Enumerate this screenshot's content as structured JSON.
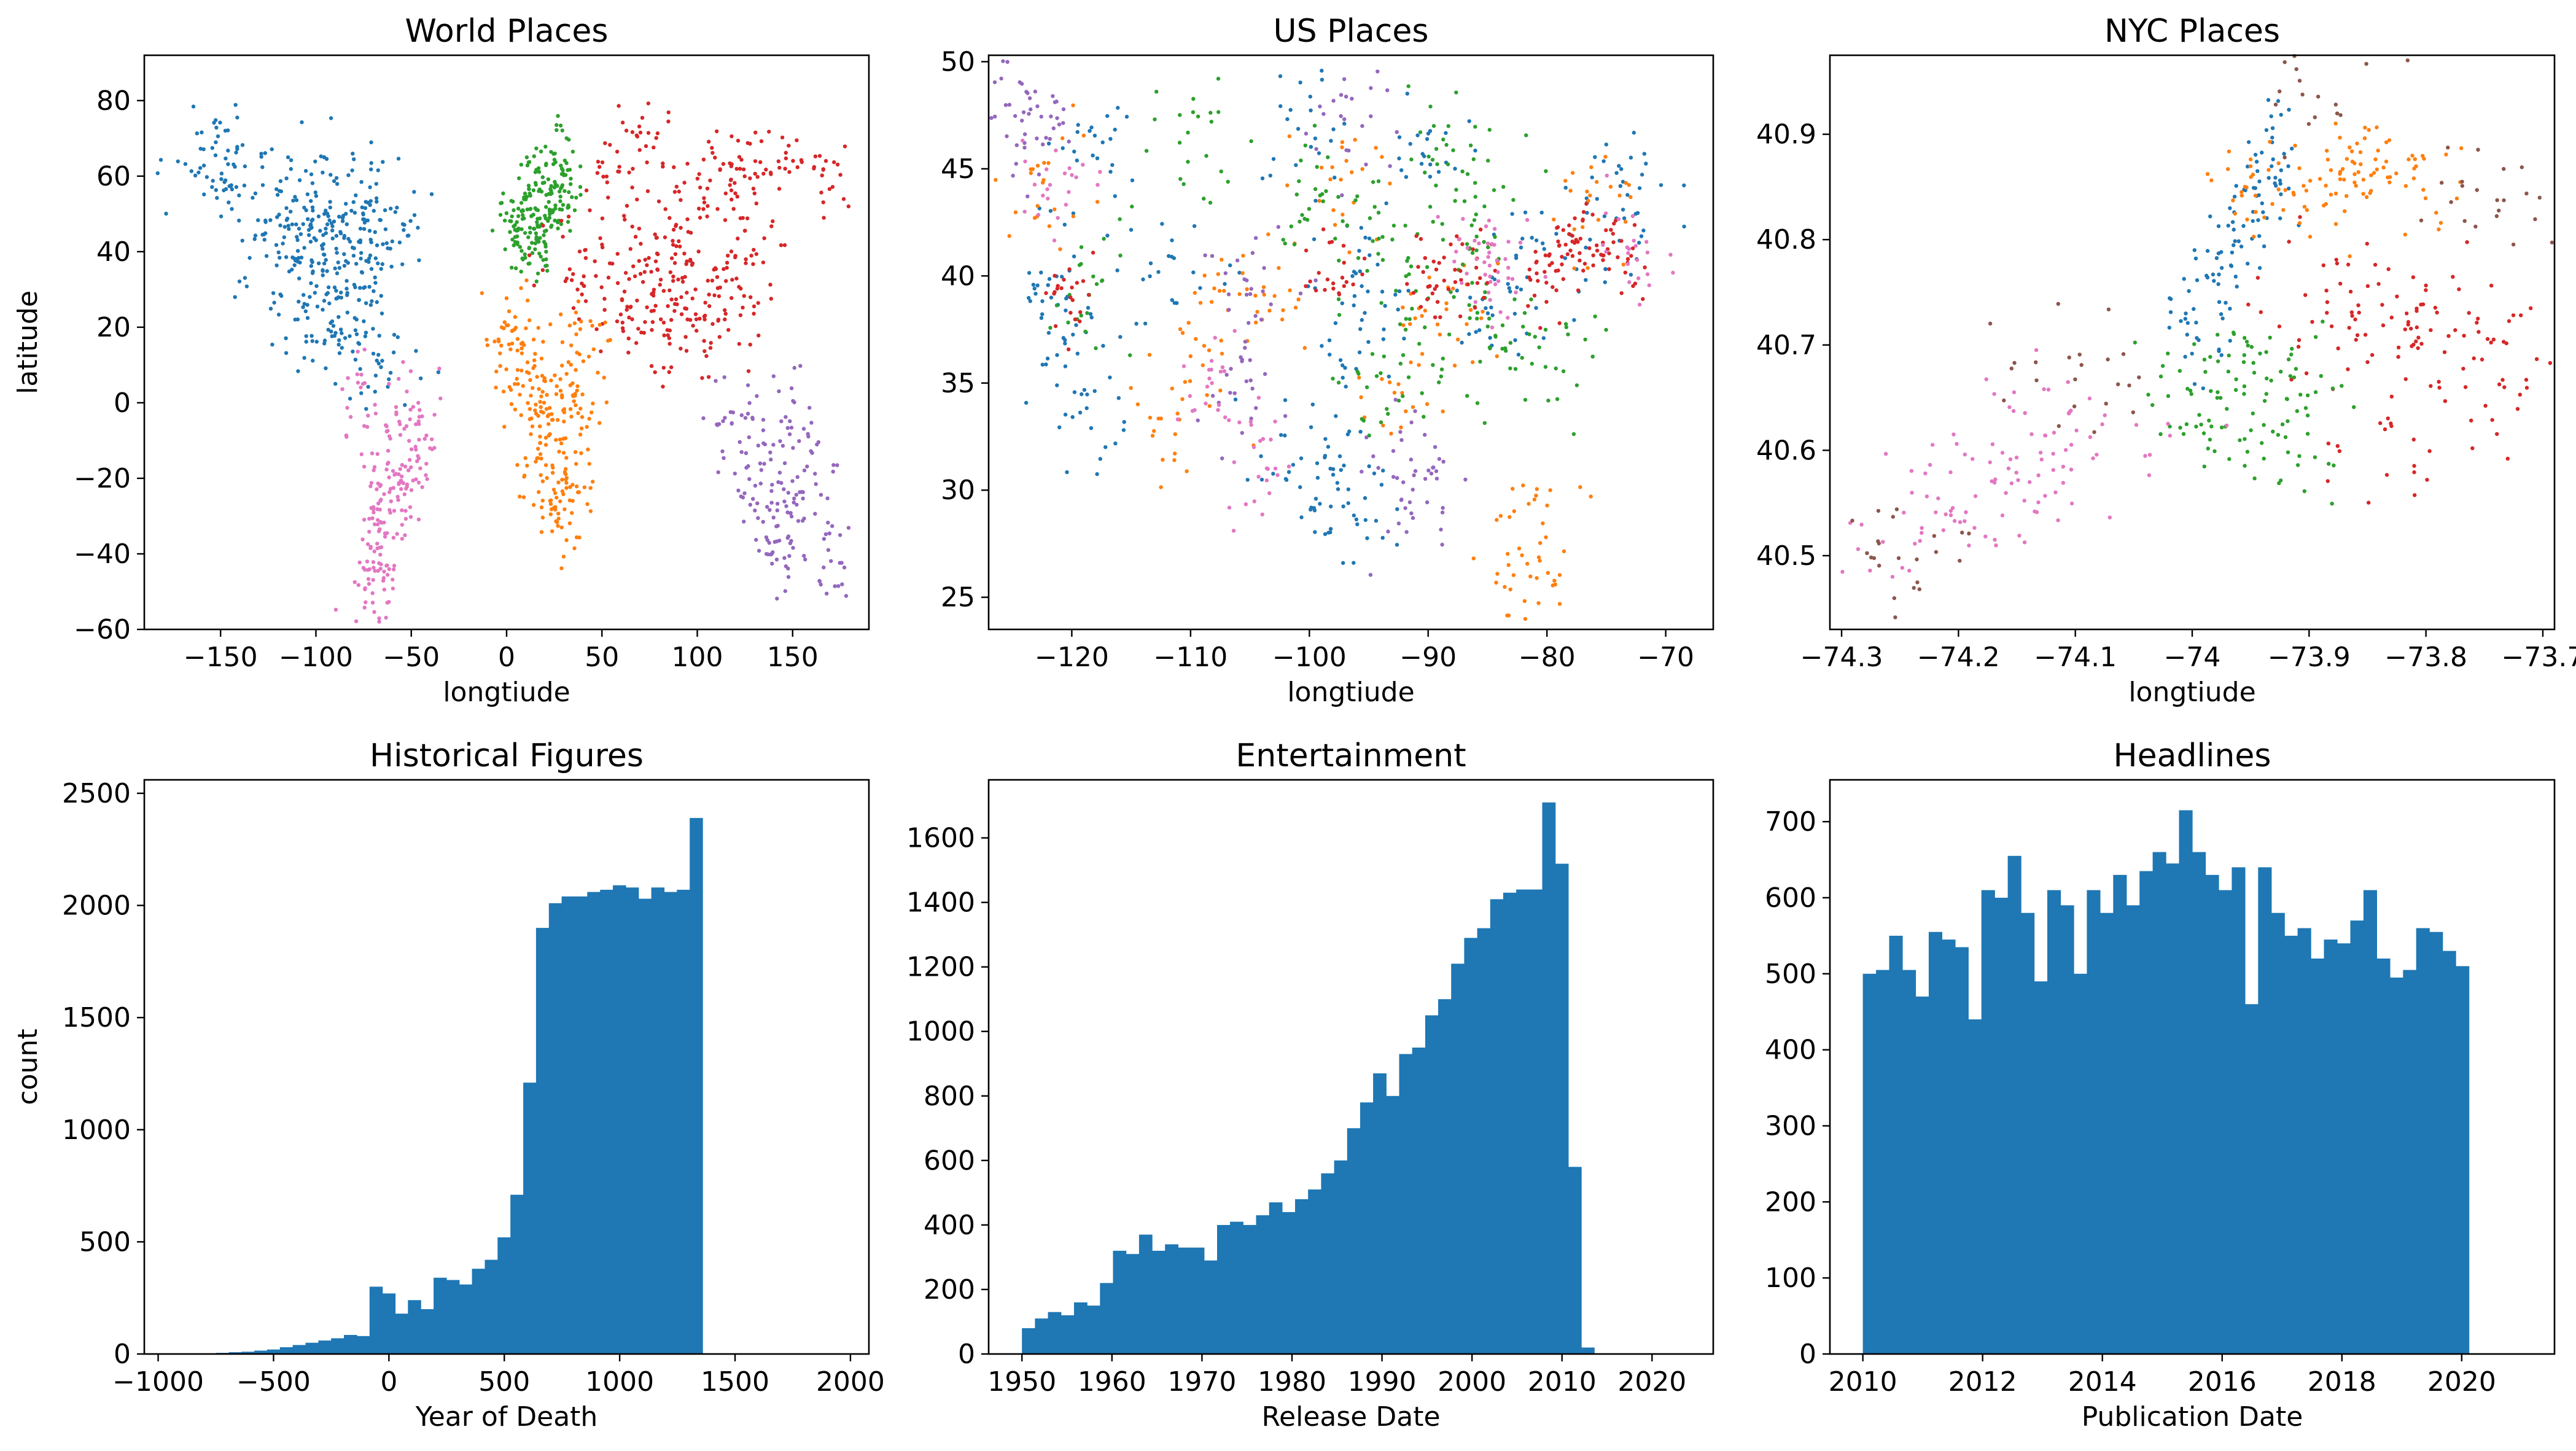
{
  "chart_data": [
    {
      "type": "scatter",
      "title": "World Places",
      "xlabel": "longtiude",
      "ylabel": "latitude",
      "xlim": [
        -190,
        190
      ],
      "ylim": [
        -60,
        92
      ],
      "xticks": [
        -150,
        -100,
        -50,
        0,
        50,
        100,
        150
      ],
      "yticks": [
        -60,
        -40,
        -20,
        0,
        20,
        40,
        60,
        80
      ],
      "grid": false,
      "clusters": [
        {
          "color": "#1f77b4",
          "spread": [
            12,
            7
          ],
          "points": [
            [
              -100,
              40
            ],
            [
              -85,
              38
            ],
            [
              -120,
              45
            ],
            [
              -90,
              50
            ],
            [
              -75,
              42
            ],
            [
              -105,
              55
            ],
            [
              -140,
              62
            ],
            [
              -100,
              25
            ],
            [
              -95,
              18
            ],
            [
              -80,
              30
            ],
            [
              -115,
              35
            ],
            [
              -70,
              48
            ],
            [
              -150,
              60
            ],
            [
              -88,
              45
            ],
            [
              -110,
              48
            ],
            [
              -60,
              50
            ],
            [
              -95,
              60
            ],
            [
              -65,
              10
            ],
            [
              -80,
              15
            ],
            [
              -160,
              65
            ]
          ]
        },
        {
          "color": "#e377c2",
          "spread": [
            6,
            8
          ],
          "points": [
            [
              -60,
              -10
            ],
            [
              -55,
              -20
            ],
            [
              -65,
              -30
            ],
            [
              -70,
              -40
            ],
            [
              -50,
              -5
            ],
            [
              -45,
              -15
            ],
            [
              -70,
              -50
            ],
            [
              -75,
              0
            ],
            [
              -60,
              -25
            ],
            [
              -68,
              -45
            ]
          ]
        },
        {
          "color": "#2ca02c",
          "spread": [
            5,
            4
          ],
          "points": [
            [
              10,
              50
            ],
            [
              20,
              52
            ],
            [
              15,
              60
            ],
            [
              25,
              55
            ],
            [
              5,
              45
            ],
            [
              30,
              58
            ],
            [
              20,
              45
            ],
            [
              2,
              48
            ],
            [
              30,
              65
            ],
            [
              15,
              40
            ]
          ]
        },
        {
          "color": "#d62728",
          "spread": [
            12,
            7
          ],
          "points": [
            [
              70,
              30
            ],
            [
              80,
              25
            ],
            [
              100,
              30
            ],
            [
              110,
              35
            ],
            [
              90,
              50
            ],
            [
              60,
              55
            ],
            [
              130,
              45
            ],
            [
              40,
              40
            ],
            [
              115,
              25
            ],
            [
              75,
              20
            ],
            [
              120,
              60
            ],
            [
              140,
              65
            ],
            [
              50,
              30
            ],
            [
              100,
              15
            ],
            [
              165,
              60
            ],
            [
              85,
              40
            ],
            [
              70,
              70
            ],
            [
              105,
              55
            ]
          ]
        },
        {
          "color": "#ff7f0e",
          "spread": [
            7,
            7
          ],
          "points": [
            [
              10,
              10
            ],
            [
              20,
              0
            ],
            [
              30,
              -10
            ],
            [
              25,
              -25
            ],
            [
              5,
              15
            ],
            [
              35,
              5
            ],
            [
              30,
              -30
            ],
            [
              15,
              -5
            ],
            [
              40,
              15
            ],
            [
              0,
              20
            ],
            [
              20,
              -15
            ],
            [
              35,
              -20
            ]
          ]
        },
        {
          "color": "#9467bd",
          "spread": [
            7,
            7
          ],
          "points": [
            [
              145,
              -30
            ],
            [
              145,
              -38
            ],
            [
              135,
              -25
            ],
            [
              150,
              -5
            ],
            [
              120,
              -5
            ],
            [
              170,
              -40
            ],
            [
              130,
              -15
            ],
            [
              160,
              -20
            ]
          ]
        }
      ]
    },
    {
      "type": "scatter",
      "title": "US Places",
      "xlabel": "longtiude",
      "ylabel": "",
      "xlim": [
        -127,
        -66
      ],
      "ylim": [
        23.5,
        50.3
      ],
      "xticks": [
        -120,
        -110,
        -100,
        -90,
        -80,
        -70
      ],
      "yticks": [
        25,
        30,
        35,
        40,
        45,
        50
      ],
      "grid": false,
      "clusters": [
        {
          "color": "#1f77b4",
          "spread": [
            2.2,
            1.6
          ],
          "points": [
            [
              -120,
              37
            ],
            [
              -118,
              34
            ],
            [
              -122,
              40
            ],
            [
              -98,
              31
            ],
            [
              -100,
              32
            ],
            [
              -96,
              29
            ],
            [
              -95,
              39
            ],
            [
              -85,
              38
            ],
            [
              -75,
              42
            ],
            [
              -72,
              44
            ],
            [
              -90,
              46
            ],
            [
              -95,
              37
            ],
            [
              -118,
              46
            ],
            [
              -112,
              40
            ],
            [
              -82,
              41
            ],
            [
              -100,
              47
            ]
          ]
        },
        {
          "color": "#ff7f0e",
          "spread": [
            2.0,
            1.5
          ],
          "points": [
            [
              -82,
              28
            ],
            [
              -81,
              26
            ],
            [
              -92,
              35
            ],
            [
              -112,
              34
            ],
            [
              -122,
              44
            ],
            [
              -108,
              38
            ],
            [
              -76,
              43
            ],
            [
              -97,
              44
            ],
            [
              -88,
              38
            ],
            [
              -104,
              39
            ]
          ]
        },
        {
          "color": "#2ca02c",
          "spread": [
            2.0,
            1.6
          ],
          "points": [
            [
              -89,
              45
            ],
            [
              -86,
              44
            ],
            [
              -95,
              42
            ],
            [
              -94,
              35
            ],
            [
              -80,
              36
            ],
            [
              -84,
              36
            ],
            [
              -100,
              44
            ],
            [
              -110,
              47
            ],
            [
              -118,
              40
            ],
            [
              -92,
              38
            ],
            [
              -86,
              40
            ]
          ]
        },
        {
          "color": "#d62728",
          "spread": [
            1.2,
            1.0
          ],
          "points": [
            [
              -90,
              40
            ],
            [
              -87,
              40
            ],
            [
              -78,
              41
            ],
            [
              -80,
              40
            ],
            [
              -98,
              40
            ],
            [
              -74,
              41
            ],
            [
              -76,
              42
            ],
            [
              -120,
              39
            ]
          ]
        },
        {
          "color": "#9467bd",
          "spread": [
            1.8,
            1.4
          ],
          "points": [
            [
              -105,
              40
            ],
            [
              -106,
              35
            ],
            [
              -90,
              30
            ],
            [
              -92,
              31
            ],
            [
              -124,
              48
            ],
            [
              -97,
              47
            ],
            [
              -122,
              47
            ]
          ]
        },
        {
          "color": "#e377c2",
          "spread": [
            1.6,
            1.2
          ],
          "points": [
            [
              -84,
              40
            ],
            [
              -86,
              41
            ],
            [
              -121,
              44
            ],
            [
              -108,
              35
            ],
            [
              -104,
              31
            ],
            [
              -73,
              41
            ]
          ]
        }
      ]
    },
    {
      "type": "scatter",
      "title": "NYC Places",
      "xlabel": "longtiude",
      "ylabel": "",
      "xlim": [
        -74.31,
        -73.69
      ],
      "ylim": [
        40.43,
        40.975
      ],
      "xticks": [
        -74.3,
        -74.2,
        -74.1,
        -74.0,
        -73.9,
        -73.8,
        -73.7
      ],
      "yticks": [
        40.5,
        40.6,
        40.7,
        40.8,
        40.9
      ],
      "grid": false,
      "clusters": [
        {
          "color": "#1f77b4",
          "spread": [
            0.012,
            0.03
          ],
          "points": [
            [
              -73.98,
              40.76
            ],
            [
              -73.96,
              40.8
            ],
            [
              -73.94,
              40.84
            ],
            [
              -74.0,
              40.72
            ],
            [
              -73.93,
              40.87
            ]
          ]
        },
        {
          "color": "#ff7f0e",
          "spread": [
            0.035,
            0.02
          ],
          "points": [
            [
              -73.88,
              40.86
            ],
            [
              -73.85,
              40.84
            ],
            [
              -73.89,
              40.88
            ],
            [
              -73.82,
              40.87
            ],
            [
              -73.92,
              40.84
            ]
          ]
        },
        {
          "color": "#d62728",
          "spread": [
            0.045,
            0.035
          ],
          "points": [
            [
              -73.85,
              40.72
            ],
            [
              -73.8,
              40.74
            ],
            [
              -73.76,
              40.7
            ],
            [
              -73.88,
              40.75
            ],
            [
              -73.82,
              40.68
            ],
            [
              -73.8,
              40.6
            ]
          ]
        },
        {
          "color": "#2ca02c",
          "spread": [
            0.04,
            0.028
          ],
          "points": [
            [
              -73.95,
              40.65
            ],
            [
              -73.98,
              40.63
            ],
            [
              -73.92,
              40.67
            ],
            [
              -73.99,
              40.68
            ],
            [
              -73.93,
              40.61
            ]
          ]
        },
        {
          "color": "#e377c2",
          "spread": [
            0.045,
            0.03
          ],
          "points": [
            [
              -74.15,
              40.58
            ],
            [
              -74.12,
              40.6
            ],
            [
              -74.2,
              40.55
            ],
            [
              -74.1,
              40.62
            ],
            [
              -74.23,
              40.52
            ]
          ]
        },
        {
          "color": "#8c564b",
          "spread": [
            0.03,
            0.03
          ],
          "points": [
            [
              -74.25,
              40.5
            ],
            [
              -73.9,
              40.94
            ],
            [
              -74.1,
              40.67
            ],
            [
              -73.75,
              40.85
            ]
          ]
        }
      ]
    },
    {
      "type": "bar",
      "title": "Historical Figures",
      "xlabel": "Year of Death",
      "ylabel": "count",
      "x_start": -750,
      "bin_width": 55.5,
      "xlim": [
        -1060,
        2080
      ],
      "ylim": [
        0,
        2560
      ],
      "xticks": [
        -1000,
        -500,
        0,
        500,
        1000,
        1500,
        2000
      ],
      "yticks": [
        0,
        500,
        1000,
        1500,
        2000,
        2500
      ],
      "values": [
        5,
        8,
        10,
        15,
        20,
        30,
        40,
        50,
        60,
        70,
        85,
        80,
        300,
        270,
        180,
        240,
        200,
        340,
        330,
        310,
        380,
        420,
        520,
        710,
        1210,
        1900,
        2010,
        2040,
        2040,
        2060,
        2070,
        2090,
        2080,
        2030,
        2080,
        2060,
        2070,
        2390
      ]
    },
    {
      "type": "bar",
      "title": "Entertainment",
      "xlabel": "Release Date",
      "ylabel": "",
      "x_start": 1950,
      "bin_width": 1.445,
      "xlim": [
        1946.3,
        2026.8
      ],
      "ylim": [
        0,
        1780
      ],
      "xticks": [
        1950,
        1960,
        1970,
        1980,
        1990,
        2000,
        2010,
        2020
      ],
      "yticks": [
        0,
        200,
        400,
        600,
        800,
        1000,
        1200,
        1400,
        1600
      ],
      "values": [
        80,
        110,
        130,
        120,
        160,
        150,
        220,
        320,
        310,
        370,
        320,
        340,
        330,
        330,
        290,
        400,
        410,
        400,
        430,
        470,
        440,
        480,
        510,
        560,
        600,
        700,
        780,
        870,
        800,
        930,
        950,
        1050,
        1100,
        1210,
        1290,
        1320,
        1410,
        1430,
        1440,
        1440,
        1710,
        1520,
        580,
        20
      ]
    },
    {
      "type": "bar",
      "title": "Headlines",
      "xlabel": "Publication Date",
      "ylabel": "",
      "x_start": 2010,
      "bin_width": 0.22,
      "xlim": [
        2009.45,
        2021.55
      ],
      "ylim": [
        0,
        755
      ],
      "xticks": [
        2010,
        2012,
        2014,
        2016,
        2018,
        2020
      ],
      "yticks": [
        0,
        100,
        200,
        300,
        400,
        500,
        600,
        700
      ],
      "values": [
        500,
        505,
        550,
        505,
        470,
        555,
        545,
        535,
        440,
        610,
        600,
        655,
        580,
        490,
        610,
        590,
        500,
        610,
        580,
        630,
        590,
        635,
        660,
        645,
        715,
        660,
        630,
        610,
        640,
        460,
        640,
        580,
        550,
        560,
        520,
        545,
        540,
        570,
        610,
        520,
        495,
        505,
        560,
        555,
        530,
        510
      ]
    }
  ]
}
